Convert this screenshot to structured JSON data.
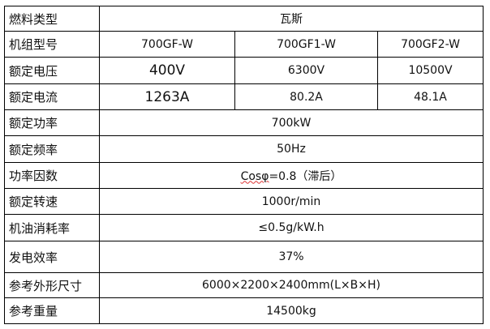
{
  "rows": [
    {
      "label": "燃料类型",
      "values": [
        "瓦斯"
      ]
    },
    {
      "label": "机组型号",
      "values": [
        "700GF-W",
        "700GF1-W",
        "700GF2-W"
      ]
    },
    {
      "label": "额定电压",
      "values": [
        "400V",
        "6300V",
        "10500V"
      ]
    },
    {
      "label": "额定电流",
      "values": [
        "1263A",
        "80.2A",
        "48.1A"
      ]
    },
    {
      "label": "额定功率",
      "values": [
        "700kW"
      ]
    },
    {
      "label": "额定频率",
      "values": [
        "50Hz"
      ]
    },
    {
      "label": "功率因数",
      "values_prefix": "Cosφ",
      "values_rest": "=0.8（滞后）"
    },
    {
      "label": "额定转速",
      "values": [
        "1000r/min"
      ]
    },
    {
      "label": "机油消耗率",
      "values": [
        "≤0.5g/kW.h"
      ]
    },
    {
      "label": "发电效率",
      "values": [
        "37%"
      ]
    },
    {
      "label": "参考外形尺寸",
      "values": [
        "6000×2200×2400mm(L×B×H)"
      ]
    },
    {
      "label": "参考重量",
      "values": [
        "14500kg"
      ]
    }
  ]
}
